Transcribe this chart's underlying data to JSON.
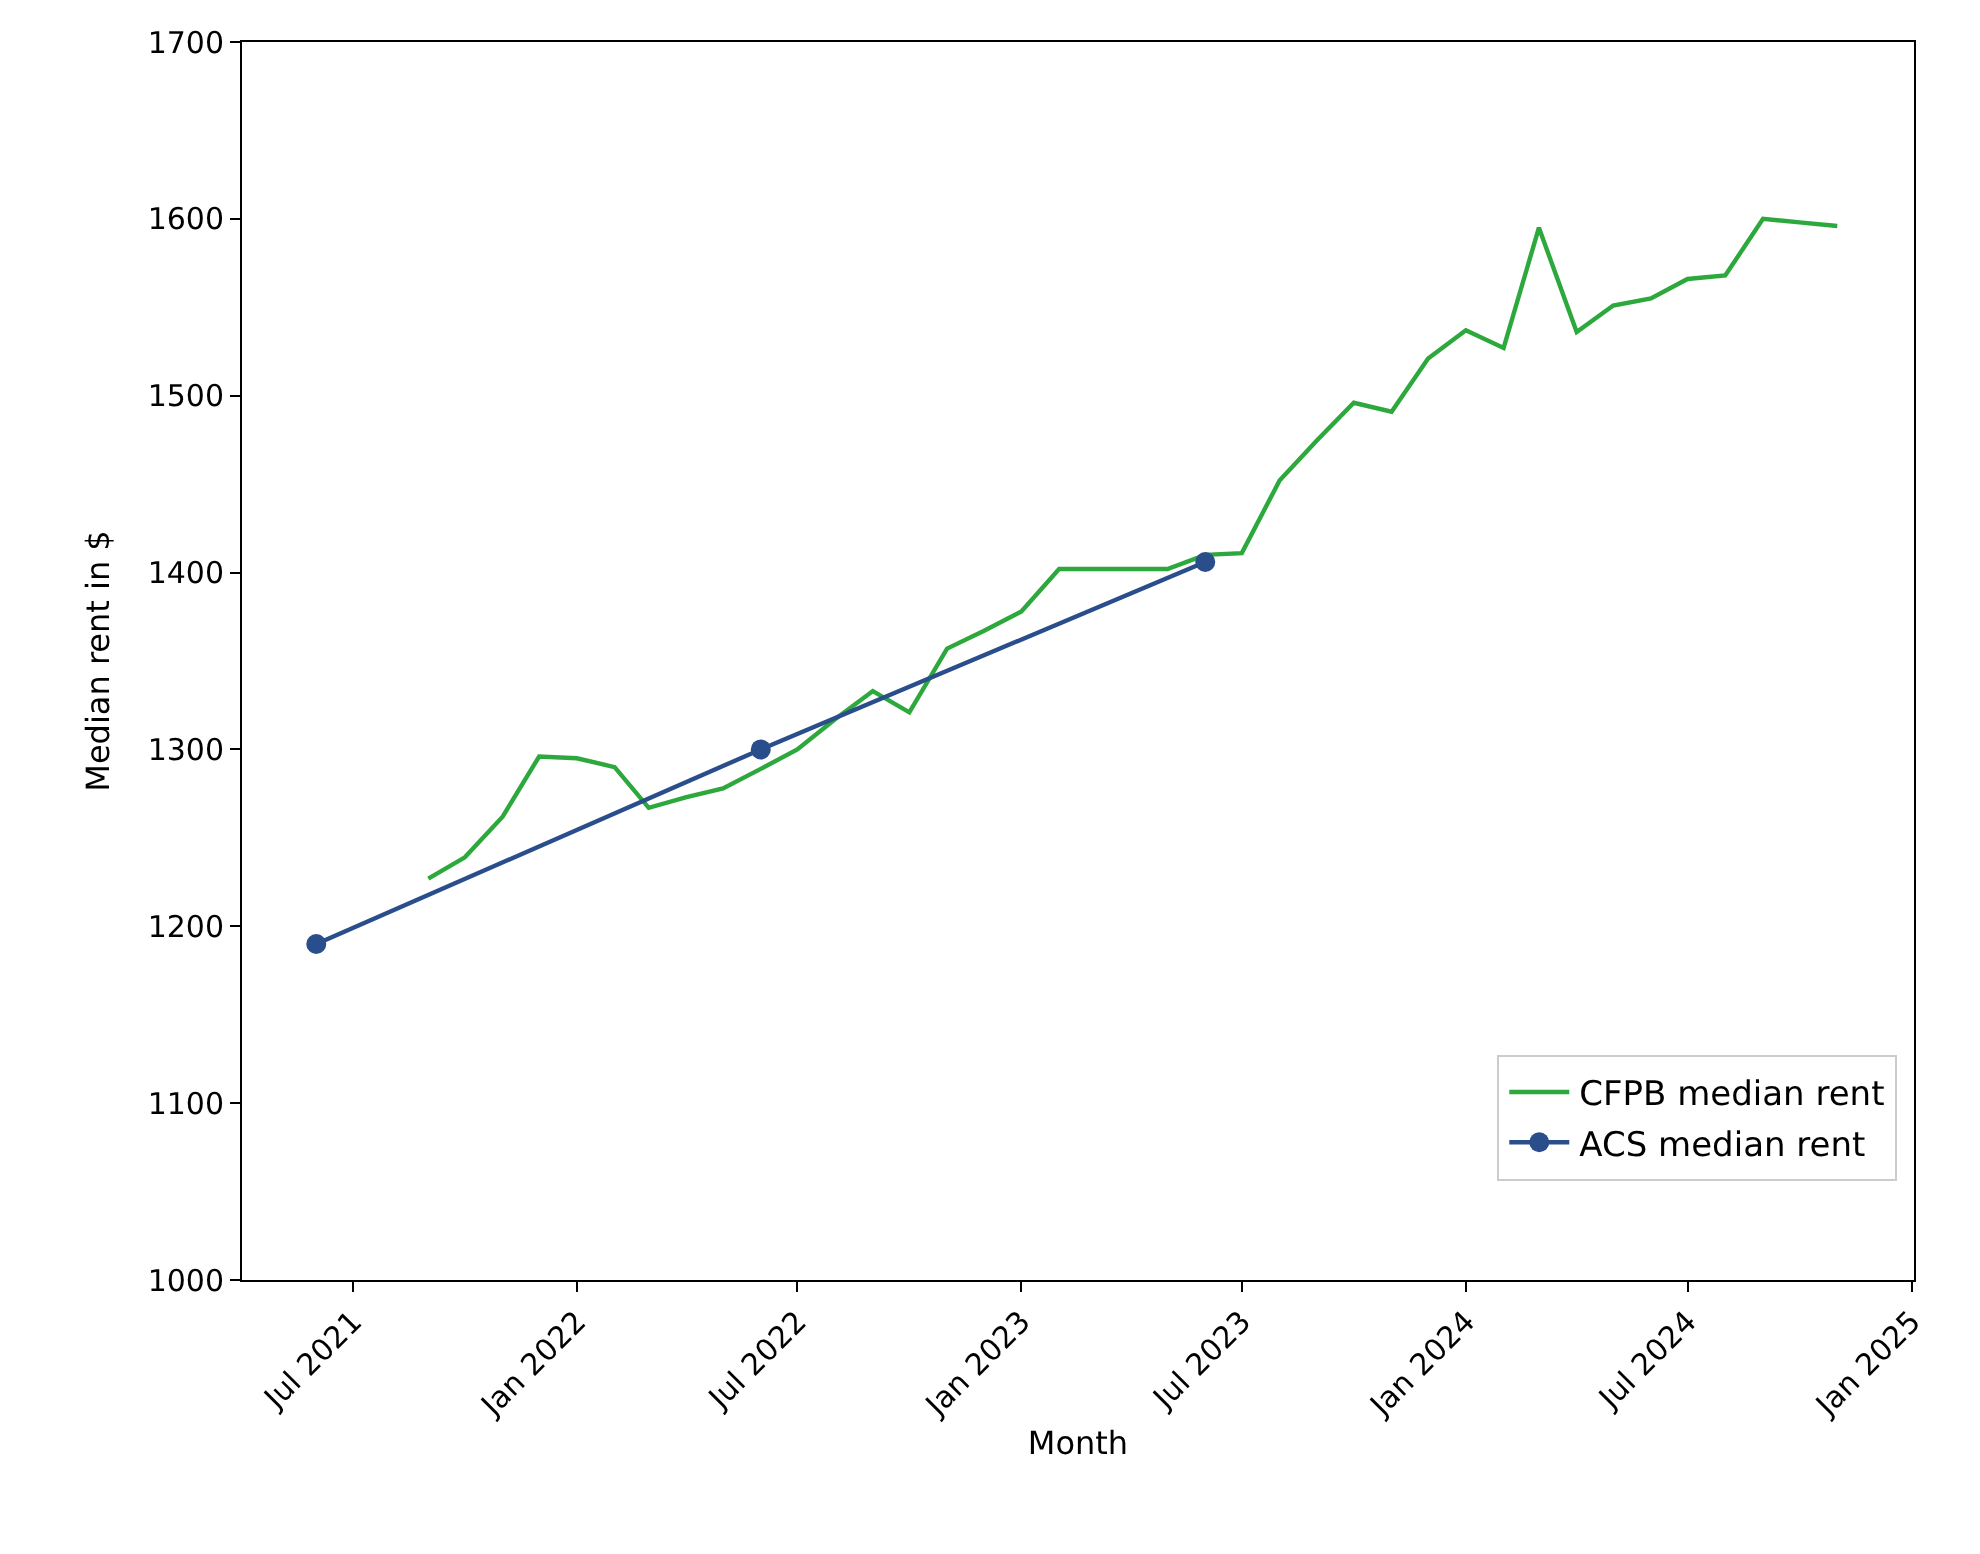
{
  "chart_data": {
    "type": "line",
    "xlabel": "Month",
    "ylabel": "Median rent in $",
    "x": [
      "2021-09",
      "2021-10",
      "2021-11",
      "2021-12",
      "2022-01",
      "2022-02",
      "2022-03",
      "2022-04",
      "2022-05",
      "2022-06",
      "2022-07",
      "2022-08",
      "2022-09",
      "2022-10",
      "2022-11",
      "2022-12",
      "2023-01",
      "2023-02",
      "2023-03",
      "2023-04",
      "2023-05",
      "2023-06",
      "2023-07",
      "2023-08",
      "2023-09",
      "2023-10",
      "2023-11",
      "2023-12",
      "2024-01",
      "2024-02",
      "2024-03",
      "2024-04",
      "2024-05",
      "2024-06",
      "2024-07",
      "2024-08",
      "2024-09",
      "2024-10",
      "2024-11"
    ],
    "series": [
      {
        "name": "CFPB median rent",
        "color": "#2ca83c",
        "marker": "none",
        "values": [
          1227,
          1239,
          1262,
          1296,
          1295,
          1290,
          1267,
          1273,
          1278,
          1289,
          1300,
          1317,
          1333,
          1321,
          1357,
          1367,
          1378,
          1402,
          1402,
          1402,
          1402,
          1410,
          1411,
          1452,
          1475,
          1496,
          1491,
          1521,
          1537,
          1527,
          1595,
          1536,
          1551,
          1555,
          1566,
          1568,
          1600,
          1598,
          1596
        ]
      },
      {
        "name": "ACS median rent",
        "color": "#2a4d8b",
        "marker": "circle",
        "x": [
          "2021-06",
          "2022-06",
          "2023-06"
        ],
        "values": [
          1190,
          1300,
          1406
        ]
      }
    ],
    "xlim": [
      "2021-04-01",
      "2025-01-03"
    ],
    "xticks": [
      {
        "value": "2021-07-01",
        "label": "Jul 2021"
      },
      {
        "value": "2022-01-01",
        "label": "Jan 2022"
      },
      {
        "value": "2022-07-01",
        "label": "Jul 2022"
      },
      {
        "value": "2023-01-01",
        "label": "Jan 2023"
      },
      {
        "value": "2023-07-01",
        "label": "Jul 2023"
      },
      {
        "value": "2024-01-01",
        "label": "Jan 2024"
      },
      {
        "value": "2024-07-01",
        "label": "Jul 2024"
      },
      {
        "value": "2025-01-01",
        "label": "Jan 2025"
      }
    ],
    "ylim": [
      1000,
      1700
    ],
    "yticks": [
      1000,
      1100,
      1200,
      1300,
      1400,
      1500,
      1600,
      1700
    ],
    "legend": "bottom right"
  }
}
